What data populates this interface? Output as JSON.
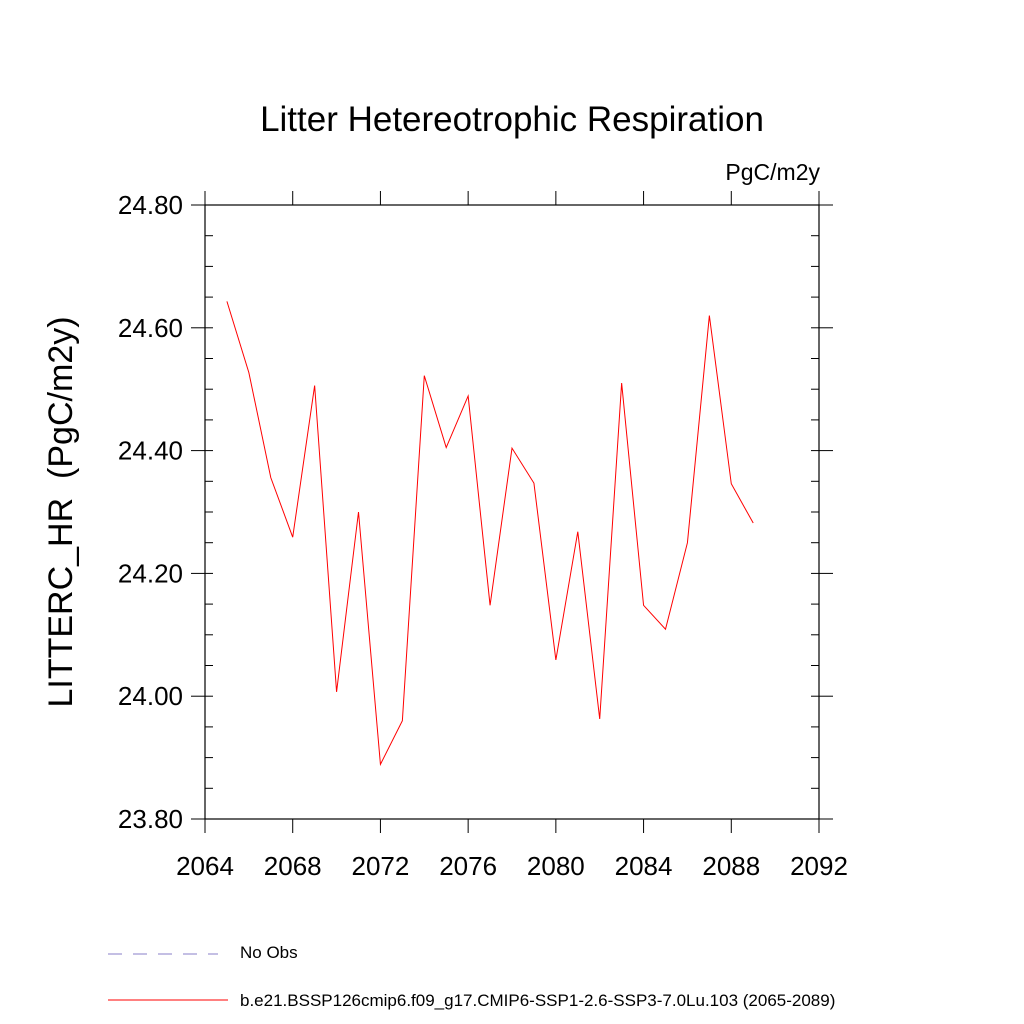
{
  "chart_data": {
    "type": "line",
    "title": "Litter Hetereotrophic Respiration",
    "units": "PgC/m2y",
    "xlabel": "",
    "ylabel": "LITTERC_HR  (PgC/m2y)",
    "xlim": [
      2064,
      2092
    ],
    "ylim": [
      23.8,
      24.8
    ],
    "xticks": [
      2064,
      2068,
      2072,
      2076,
      2080,
      2084,
      2088,
      2092
    ],
    "xtick_labels": [
      "2064",
      "2068",
      "2072",
      "2076",
      "2080",
      "2084",
      "2088",
      "2092"
    ],
    "yticks": [
      23.8,
      24.0,
      24.2,
      24.4,
      24.6,
      24.8
    ],
    "ytick_labels": [
      "23.80",
      "24.00",
      "24.20",
      "24.40",
      "24.60",
      "24.80"
    ],
    "series": [
      {
        "name": "b.e21.BSSP126cmip6.f09_g17.CMIP6-SSP1-2.6-SSP3-7.0Lu.103 (2065-2089)",
        "color": "#ff0000",
        "x": [
          2065,
          2066,
          2067,
          2068,
          2069,
          2070,
          2071,
          2072,
          2073,
          2074,
          2075,
          2076,
          2077,
          2078,
          2079,
          2080,
          2081,
          2082,
          2083,
          2084,
          2085,
          2086,
          2087,
          2088,
          2089
        ],
        "values": [
          24.643,
          24.527,
          24.356,
          24.259,
          24.506,
          24.007,
          24.3,
          23.889,
          23.96,
          24.522,
          24.405,
          24.489,
          24.148,
          24.404,
          24.347,
          24.059,
          24.268,
          23.963,
          24.51,
          24.148,
          24.109,
          24.25,
          24.62,
          24.346,
          24.282
        ]
      }
    ],
    "legend": [
      {
        "label": "No Obs",
        "style": "dashed",
        "color": "#8a7fc8"
      },
      {
        "label": "b.e21.BSSP126cmip6.f09_g17.CMIP6-SSP1-2.6-SSP3-7.0Lu.103 (2065-2089)",
        "style": "solid",
        "color": "#ff0000"
      }
    ]
  }
}
